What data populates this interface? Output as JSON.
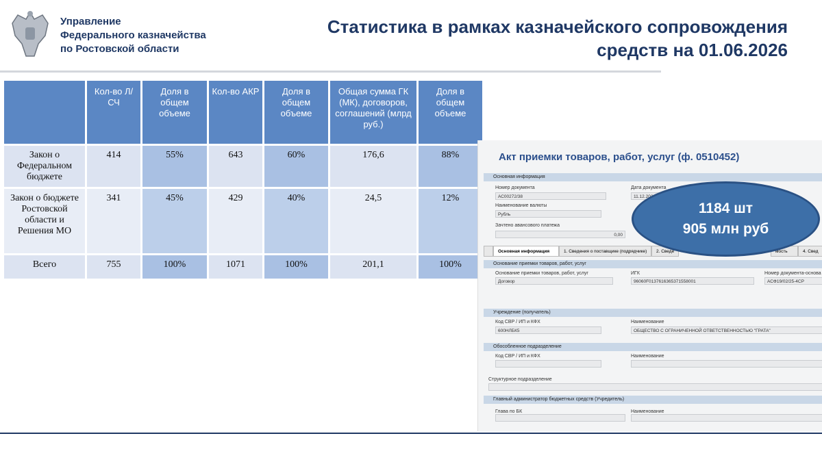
{
  "header": {
    "org": [
      "Управление",
      "Федерального казначейства",
      "по Ростовской области"
    ],
    "title": [
      "Статистика в рамках казначейского сопровождения",
      "средств на 01.06.2026"
    ]
  },
  "table": {
    "columns": [
      "Кол-во Л/СЧ",
      "Доля в общем объеме",
      "Кол-во АКР",
      "Доля в общем объеме",
      "Общая сумма ГК (МК), договоров, соглашений (млрд руб.)",
      "Доля в общем объеме"
    ],
    "rows": [
      [
        "Закон о Федеральном бюджете",
        "414",
        "55%",
        "643",
        "60%",
        "176,6",
        "88%"
      ],
      [
        "Закон о бюджете Ростовской области и Решения МО",
        "341",
        "45%",
        "429",
        "40%",
        "24,5",
        "12%"
      ],
      [
        "Всего",
        "755",
        "100%",
        "1071",
        "100%",
        "201,1",
        "100%"
      ]
    ]
  },
  "form": {
    "title": "Акт приемки товаров, работ, услуг (ф. 0510452)",
    "sections": [
      "Основная информация",
      "Основание приемки товаров, работ, услуг",
      "Учреждение (получатель)",
      "Обособленное подразделение",
      "Главный администратор бюджетных средств (Учредитель)"
    ],
    "labels": [
      "Номер документа",
      "Дата документа",
      "Наименование валюты",
      "Зачтено авансового платежа",
      "Основание приемки товаров, работ, услуг",
      "ИГК",
      "Номер документа-основа",
      "Код СВР / ИП и КФХ",
      "Наименование",
      "Код СВР / ИП и КФХ",
      "Наименование",
      "Структурное подразделение",
      "Глава по БК",
      "Наименование"
    ],
    "values": [
      "АС00272/38",
      "11.12.202",
      "Рубль",
      "0,00",
      "Договор",
      "96060F0137616365371558001",
      "АСФ19/02/25-4СР",
      "600НЛБК5",
      "ОБЩЕСТВО С ОГРАНИЧЕННОЙ ОТВЕТСТВЕННОСТЬЮ \"ГРАТА\""
    ],
    "tabs": [
      "Основная информация",
      "1. Сведения о поставщике (подрядчике)",
      "2. Сведе",
      "мость",
      "4. Свед"
    ]
  },
  "callout": [
    "1184 шт",
    "905 млн руб"
  ]
}
